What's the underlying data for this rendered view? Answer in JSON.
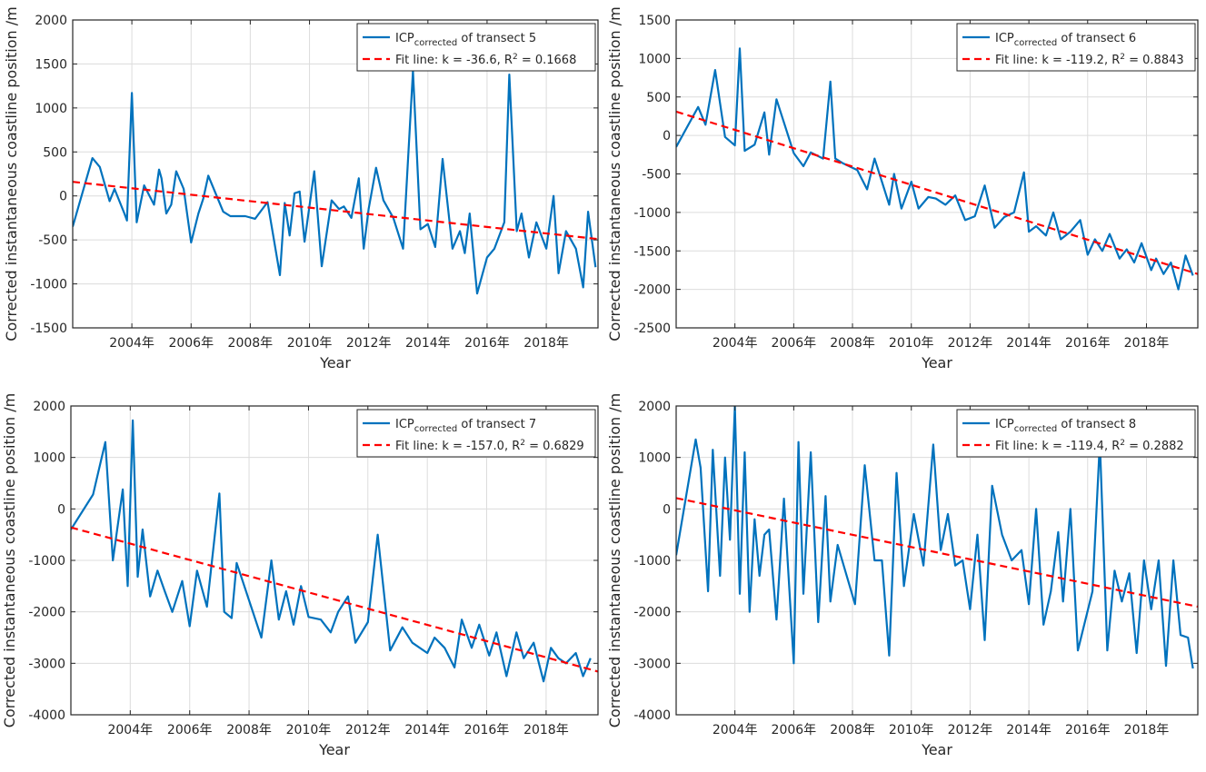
{
  "chart_data": [
    {
      "type": "line",
      "title": "",
      "xlabel": "Year",
      "ylabel": "Corrected instantaneous coastline position /m",
      "xlim": [
        "2002-01-01",
        "2019-10-01"
      ],
      "ylim": [
        -1500,
        2000
      ],
      "yticks": [
        -1500,
        -1000,
        -500,
        0,
        500,
        1000,
        1500,
        2000
      ],
      "xticks": [
        "2004-01-01",
        "2006-01-01",
        "2008-01-01",
        "2010-01-01",
        "2012-01-01",
        "2014-01-01",
        "2016-01-01",
        "2018-01-01"
      ],
      "xtick_labels": [
        "2004年",
        "2006年",
        "2008年",
        "2010年",
        "2012年",
        "2014年",
        "2016年",
        "2018年"
      ],
      "grid": true,
      "legend_position": "top-right",
      "legend": {
        "series_main": "ICP",
        "series_sub": "corrected",
        "series_rest": " of transect 5",
        "fit_text": "Fit line: k = -36.6, R",
        "fit_sup": "2",
        "fit_rest": " = 0.1668"
      },
      "series": [
        {
          "color": "#0072BD",
          "x": [
            "2002-01-01",
            "2002-09-01",
            "2002-12-01",
            "2003-04-01",
            "2003-06-01",
            "2003-10-01",
            "2003-11-01",
            "2004-01-01",
            "2004-03-01",
            "2004-06-01",
            "2004-10-01",
            "2004-12-01",
            "2005-01-01",
            "2005-03-01",
            "2005-05-01",
            "2005-07-01",
            "2005-10-01",
            "2006-01-01",
            "2006-04-01",
            "2006-06-01",
            "2006-08-01",
            "2007-02-01",
            "2007-05-01",
            "2007-07-01",
            "2007-09-01",
            "2007-11-01",
            "2008-03-01",
            "2008-08-01",
            "2009-01-01",
            "2009-03-01",
            "2009-05-01",
            "2009-07-01",
            "2009-09-01",
            "2009-11-01",
            "2010-03-01",
            "2010-06-01",
            "2010-10-01",
            "2011-01-01",
            "2011-03-01",
            "2011-06-01",
            "2011-09-01",
            "2011-11-01",
            "2012-01-01",
            "2012-04-01",
            "2012-07-01",
            "2012-11-01",
            "2013-03-01",
            "2013-07-01",
            "2013-10-01",
            "2014-01-01",
            "2014-04-01",
            "2014-07-01",
            "2014-11-01",
            "2015-02-01",
            "2015-04-01",
            "2015-06-01",
            "2015-09-01",
            "2016-01-01",
            "2016-04-01",
            "2016-08-01",
            "2016-10-01",
            "2017-01-01",
            "2017-03-01",
            "2017-06-01",
            "2017-09-01",
            "2018-01-01",
            "2018-04-01",
            "2018-06-01",
            "2018-09-01",
            "2019-01-01",
            "2019-04-01",
            "2019-06-01",
            "2019-09-01"
          ],
          "values": [
            -350,
            430,
            330,
            -60,
            80,
            -200,
            -280,
            1170,
            -300,
            120,
            -100,
            300,
            200,
            -200,
            -100,
            280,
            80,
            -530,
            -200,
            -30,
            230,
            -180,
            -230,
            -230,
            -230,
            -230,
            -260,
            -70,
            -900,
            -80,
            -450,
            30,
            50,
            -520,
            280,
            -800,
            -50,
            -150,
            -120,
            -250,
            200,
            -600,
            -150,
            320,
            -50,
            -250,
            -600,
            1420,
            -380,
            -320,
            -580,
            420,
            -600,
            -400,
            -650,
            -200,
            -1110,
            -700,
            -600,
            -300,
            1380,
            -400,
            -200,
            -700,
            -300,
            -600,
            0,
            -880,
            -400,
            -600,
            -1040,
            -180,
            -810
          ]
        },
        {
          "color": "#FF0000",
          "dashed": true,
          "x": [
            "2002-01-01",
            "2019-10-01"
          ],
          "values": [
            160,
            -490
          ]
        }
      ]
    },
    {
      "type": "line",
      "title": "",
      "xlabel": "Year",
      "ylabel": "Corrected instantaneous coastline position /m",
      "xlim": [
        "2002-01-01",
        "2019-10-01"
      ],
      "ylim": [
        -2500,
        1500
      ],
      "yticks": [
        -2500,
        -2000,
        -1500,
        -1000,
        -500,
        0,
        500,
        1000,
        1500
      ],
      "xticks": [
        "2004-01-01",
        "2006-01-01",
        "2008-01-01",
        "2010-01-01",
        "2012-01-01",
        "2014-01-01",
        "2016-01-01",
        "2018-01-01"
      ],
      "xtick_labels": [
        "2004年",
        "2006年",
        "2008年",
        "2010年",
        "2012年",
        "2014年",
        "2016年",
        "2018年"
      ],
      "grid": true,
      "legend_position": "top-right",
      "legend": {
        "series_main": "ICP",
        "series_sub": "corrected",
        "series_rest": " of transect 6",
        "fit_text": "Fit line: k = -119.2, R",
        "fit_sup": "2",
        "fit_rest": " = 0.8843"
      },
      "series": [
        {
          "color": "#0072BD",
          "x": [
            "2002-01-01",
            "2002-10-01",
            "2003-01-01",
            "2003-05-01",
            "2003-09-01",
            "2004-01-01",
            "2004-03-01",
            "2004-05-01",
            "2004-09-01",
            "2005-01-01",
            "2005-03-01",
            "2005-06-01",
            "2006-01-01",
            "2006-05-01",
            "2006-08-01",
            "2007-01-01",
            "2007-04-01",
            "2007-06-01",
            "2007-09-01",
            "2008-03-01",
            "2008-07-01",
            "2008-10-01",
            "2009-01-01",
            "2009-04-01",
            "2009-06-01",
            "2009-09-01",
            "2010-01-01",
            "2010-04-01",
            "2010-08-01",
            "2010-11-01",
            "2011-03-01",
            "2011-07-01",
            "2011-11-01",
            "2012-03-01",
            "2012-07-01",
            "2012-11-01",
            "2013-03-01",
            "2013-07-01",
            "2013-11-01",
            "2014-01-01",
            "2014-04-01",
            "2014-08-01",
            "2014-11-01",
            "2015-02-01",
            "2015-06-01",
            "2015-10-01",
            "2016-01-01",
            "2016-04-01",
            "2016-07-01",
            "2016-10-01",
            "2017-02-01",
            "2017-05-01",
            "2017-08-01",
            "2017-11-01",
            "2018-03-01",
            "2018-05-01",
            "2018-08-01",
            "2018-11-01",
            "2019-02-01",
            "2019-05-01",
            "2019-08-01"
          ],
          "values": [
            -150,
            370,
            140,
            850,
            -20,
            -130,
            1130,
            -200,
            -120,
            300,
            -250,
            470,
            -230,
            -400,
            -220,
            -300,
            700,
            -300,
            -360,
            -450,
            -700,
            -300,
            -600,
            -900,
            -500,
            -950,
            -600,
            -950,
            -800,
            -820,
            -900,
            -780,
            -1100,
            -1050,
            -650,
            -1200,
            -1060,
            -1000,
            -480,
            -1250,
            -1180,
            -1300,
            -1000,
            -1350,
            -1250,
            -1100,
            -1550,
            -1350,
            -1500,
            -1280,
            -1600,
            -1480,
            -1650,
            -1400,
            -1750,
            -1600,
            -1800,
            -1650,
            -2000,
            -1560,
            -1820
          ]
        },
        {
          "color": "#FF0000",
          "dashed": true,
          "x": [
            "2002-01-01",
            "2019-10-01"
          ],
          "values": [
            310,
            -1800
          ]
        }
      ]
    },
    {
      "type": "line",
      "title": "",
      "xlabel": "Year",
      "ylabel": "Corrected instantaneous coastline position /m",
      "xlim": [
        "2002-01-01",
        "2019-10-01"
      ],
      "ylim": [
        -4000,
        2000
      ],
      "yticks": [
        -4000,
        -3000,
        -2000,
        -1000,
        0,
        1000,
        2000
      ],
      "xticks": [
        "2004-01-01",
        "2006-01-01",
        "2008-01-01",
        "2010-01-01",
        "2012-01-01",
        "2014-01-01",
        "2016-01-01",
        "2018-01-01"
      ],
      "xtick_labels": [
        "2004年",
        "2006年",
        "2008年",
        "2010年",
        "2012年",
        "2014年",
        "2016年",
        "2018年"
      ],
      "grid": true,
      "legend_position": "top-right",
      "legend": {
        "series_main": "ICP",
        "series_sub": "corrected",
        "series_rest": " of transect 7",
        "fit_text": "Fit line: k = -157.0, R",
        "fit_sup": "2",
        "fit_rest": " = 0.6829"
      },
      "series": [
        {
          "color": "#0072BD",
          "x": [
            "2002-01-01",
            "2002-10-01",
            "2003-03-01",
            "2003-06-01",
            "2003-10-01",
            "2003-12-01",
            "2004-02-01",
            "2004-04-01",
            "2004-06-01",
            "2004-09-01",
            "2004-12-01",
            "2005-03-01",
            "2005-06-01",
            "2005-10-01",
            "2006-01-01",
            "2006-04-01",
            "2006-08-01",
            "2007-01-01",
            "2007-03-01",
            "2007-06-01",
            "2007-08-01",
            "2008-06-01",
            "2008-10-01",
            "2009-01-01",
            "2009-04-01",
            "2009-07-01",
            "2009-10-01",
            "2010-01-01",
            "2010-06-01",
            "2010-10-01",
            "2011-01-01",
            "2011-05-01",
            "2011-08-01",
            "2012-01-01",
            "2012-05-01",
            "2012-10-01",
            "2013-03-01",
            "2013-07-01",
            "2014-01-01",
            "2014-04-01",
            "2014-08-01",
            "2014-12-01",
            "2015-03-01",
            "2015-07-01",
            "2015-10-01",
            "2016-02-01",
            "2016-05-01",
            "2016-09-01",
            "2017-01-01",
            "2017-04-01",
            "2017-08-01",
            "2017-12-01",
            "2018-03-01",
            "2018-06-01",
            "2018-09-01",
            "2019-01-01",
            "2019-04-01",
            "2019-07-01"
          ],
          "values": [
            -400,
            280,
            1300,
            -1000,
            380,
            -1500,
            1720,
            -1320,
            -400,
            -1700,
            -1200,
            -1600,
            -2000,
            -1400,
            -2280,
            -1200,
            -1900,
            300,
            -2000,
            -2120,
            -1050,
            -2500,
            -1000,
            -2150,
            -1600,
            -2250,
            -1500,
            -2100,
            -2150,
            -2400,
            -2000,
            -1700,
            -2600,
            -2200,
            -500,
            -2750,
            -2300,
            -2600,
            -2800,
            -2500,
            -2700,
            -3080,
            -2150,
            -2700,
            -2250,
            -2850,
            -2400,
            -3250,
            -2400,
            -2900,
            -2600,
            -3350,
            -2700,
            -2900,
            -3000,
            -2800,
            -3250,
            -2900
          ]
        },
        {
          "color": "#FF0000",
          "dashed": true,
          "x": [
            "2002-01-01",
            "2019-10-01"
          ],
          "values": [
            -360,
            -3160
          ]
        }
      ]
    },
    {
      "type": "line",
      "title": "",
      "xlabel": "Year",
      "ylabel": "Corrected instantaneous coastline position /m",
      "xlim": [
        "2002-01-01",
        "2019-10-01"
      ],
      "ylim": [
        -4000,
        2000
      ],
      "yticks": [
        -4000,
        -3000,
        -2000,
        -1000,
        0,
        1000,
        2000
      ],
      "xticks": [
        "2004-01-01",
        "2006-01-01",
        "2008-01-01",
        "2010-01-01",
        "2012-01-01",
        "2014-01-01",
        "2016-01-01",
        "2018-01-01"
      ],
      "xtick_labels": [
        "2004年",
        "2006年",
        "2008年",
        "2010年",
        "2012年",
        "2014年",
        "2016年",
        "2018年"
      ],
      "grid": true,
      "legend_position": "top-right",
      "legend": {
        "series_main": "ICP",
        "series_sub": "corrected",
        "series_rest": " of transect 8",
        "fit_text": "Fit line: k = -119.4, R",
        "fit_sup": "2",
        "fit_rest": " = 0.2882"
      },
      "series": [
        {
          "color": "#0072BD",
          "x": [
            "2002-01-01",
            "2002-09-01",
            "2002-11-01",
            "2003-02-01",
            "2003-04-01",
            "2003-07-01",
            "2003-09-01",
            "2003-11-01",
            "2004-01-01",
            "2004-03-01",
            "2004-05-01",
            "2004-07-01",
            "2004-09-01",
            "2004-11-01",
            "2005-01-01",
            "2005-03-01",
            "2005-06-01",
            "2005-09-01",
            "2006-01-01",
            "2006-03-01",
            "2006-05-01",
            "2006-08-01",
            "2006-11-01",
            "2007-02-01",
            "2007-04-01",
            "2007-07-01",
            "2008-02-01",
            "2008-06-01",
            "2008-10-01",
            "2009-01-01",
            "2009-04-01",
            "2009-07-01",
            "2009-10-01",
            "2010-02-01",
            "2010-06-01",
            "2010-10-01",
            "2011-01-01",
            "2011-04-01",
            "2011-07-01",
            "2011-10-01",
            "2012-01-01",
            "2012-04-01",
            "2012-07-01",
            "2012-10-01",
            "2013-02-01",
            "2013-06-01",
            "2013-10-01",
            "2014-01-01",
            "2014-04-01",
            "2014-07-01",
            "2014-10-01",
            "2015-01-01",
            "2015-03-01",
            "2015-06-01",
            "2015-09-01",
            "2016-03-01",
            "2016-06-01",
            "2016-09-01",
            "2016-12-01",
            "2017-03-01",
            "2017-06-01",
            "2017-09-01",
            "2017-12-01",
            "2018-03-01",
            "2018-06-01",
            "2018-09-01",
            "2018-12-01",
            "2019-03-01",
            "2019-06-01",
            "2019-08-01"
          ],
          "values": [
            -900,
            1350,
            800,
            -1600,
            1150,
            -1300,
            1000,
            -600,
            2000,
            -1650,
            1100,
            -2000,
            -200,
            -1300,
            -500,
            -400,
            -2150,
            200,
            -3000,
            1300,
            -1650,
            1100,
            -2200,
            250,
            -1800,
            -700,
            -1850,
            850,
            -1000,
            -1000,
            -2850,
            700,
            -1500,
            -100,
            -1100,
            1250,
            -800,
            -100,
            -1100,
            -1000,
            -1950,
            -500,
            -2550,
            450,
            -500,
            -1000,
            -800,
            -1850,
            0,
            -2250,
            -1600,
            -450,
            -1800,
            0,
            -2750,
            -1600,
            1300,
            -2750,
            -1200,
            -1800,
            -1250,
            -2800,
            -1000,
            -1950,
            -1000,
            -3050,
            -1000,
            -2450,
            -2500,
            -3100
          ]
        },
        {
          "color": "#FF0000",
          "dashed": true,
          "x": [
            "2002-01-01",
            "2019-10-01"
          ],
          "values": [
            210,
            -1900
          ]
        }
      ]
    }
  ]
}
